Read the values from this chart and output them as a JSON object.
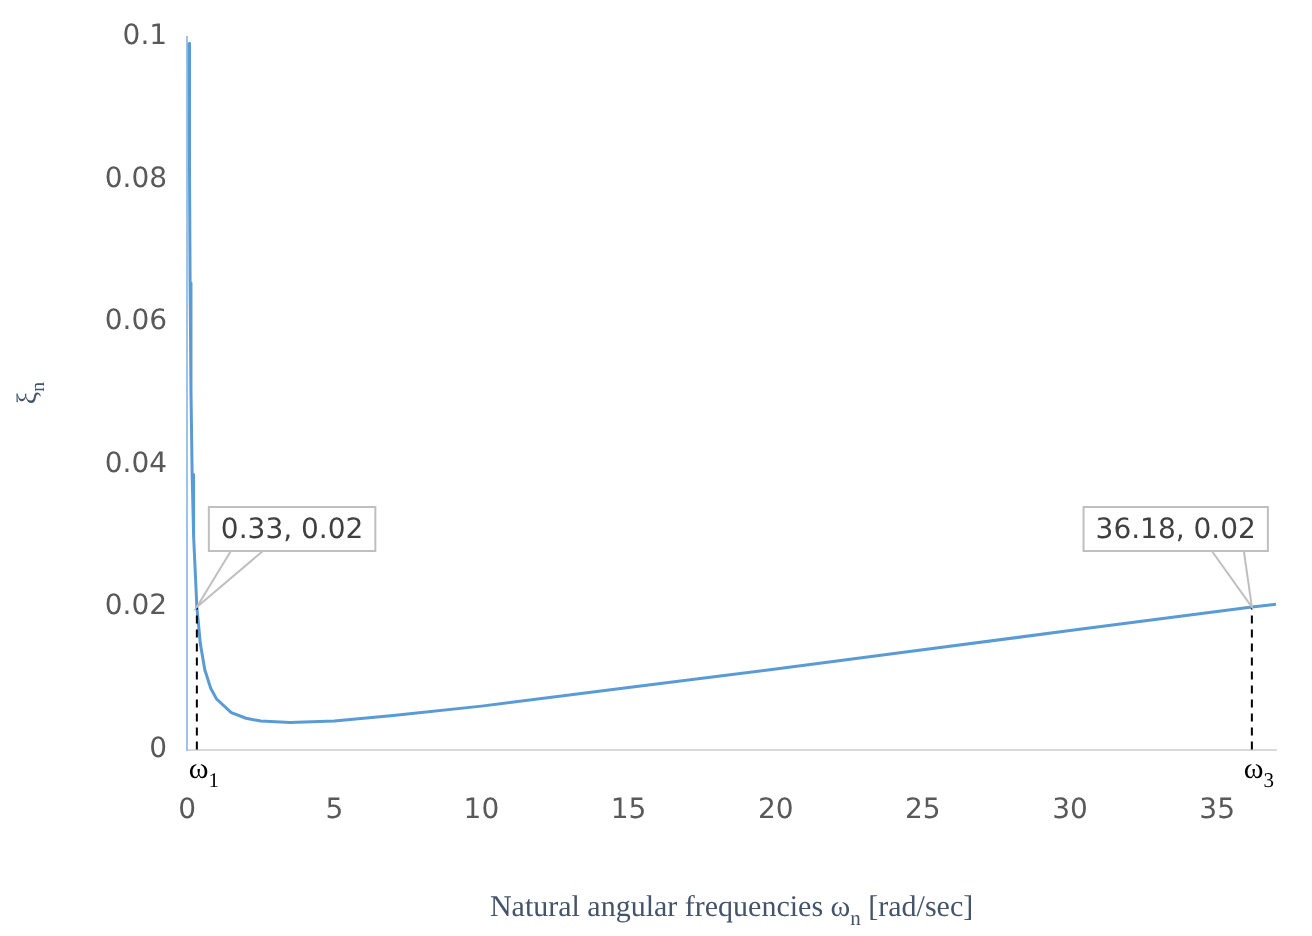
{
  "chart_data": {
    "type": "line",
    "xlabel": "Natural angular frequencies ω$_{n}$ [rad/sec]",
    "ylabel": "ξ$_{n}$",
    "x": [
      0.066,
      0.08,
      0.1,
      0.13,
      0.17,
      0.22,
      0.33,
      0.45,
      0.6,
      0.8,
      1,
      1.5,
      2,
      2.5,
      3.5,
      5,
      7,
      10,
      15,
      20,
      25,
      30,
      36.18,
      37
    ],
    "series": [
      {
        "color": "#5b9bd5",
        "values": [
          0.0991,
          0.0818,
          0.0655,
          0.0504,
          0.0386,
          0.0299,
          0.02,
          0.0148,
          0.0112,
          0.0086,
          0.0071,
          0.0052,
          0.0044,
          0.004,
          0.0038,
          0.004,
          0.0048,
          0.0061,
          0.0087,
          0.0113,
          0.014,
          0.0167,
          0.02,
          0.0204
        ]
      }
    ],
    "xlim": [
      0,
      37
    ],
    "xticks": [
      0,
      5,
      10,
      15,
      20,
      25,
      30,
      35
    ],
    "ylim": [
      0,
      0.1
    ],
    "yticks": [
      0,
      0.02,
      0.04,
      0.06,
      0.08,
      0.1
    ],
    "grid": false,
    "legend": false,
    "marker": "none",
    "line_style": "solid",
    "ref_lines": [
      {
        "axis": "x",
        "value": 0.33,
        "label": "ω$_{1}$",
        "line_style": "dashed",
        "color": "#000000"
      },
      {
        "axis": "x",
        "value": 36.18,
        "label": "ω$_{3}$",
        "line_style": "dashed",
        "color": "#000000"
      }
    ],
    "annotations": [
      {
        "text": "0.33, 0.02",
        "x": 0.33,
        "y": 0.02
      },
      {
        "text": "36.18, 0.02",
        "x": 36.18,
        "y": 0.02
      }
    ]
  }
}
